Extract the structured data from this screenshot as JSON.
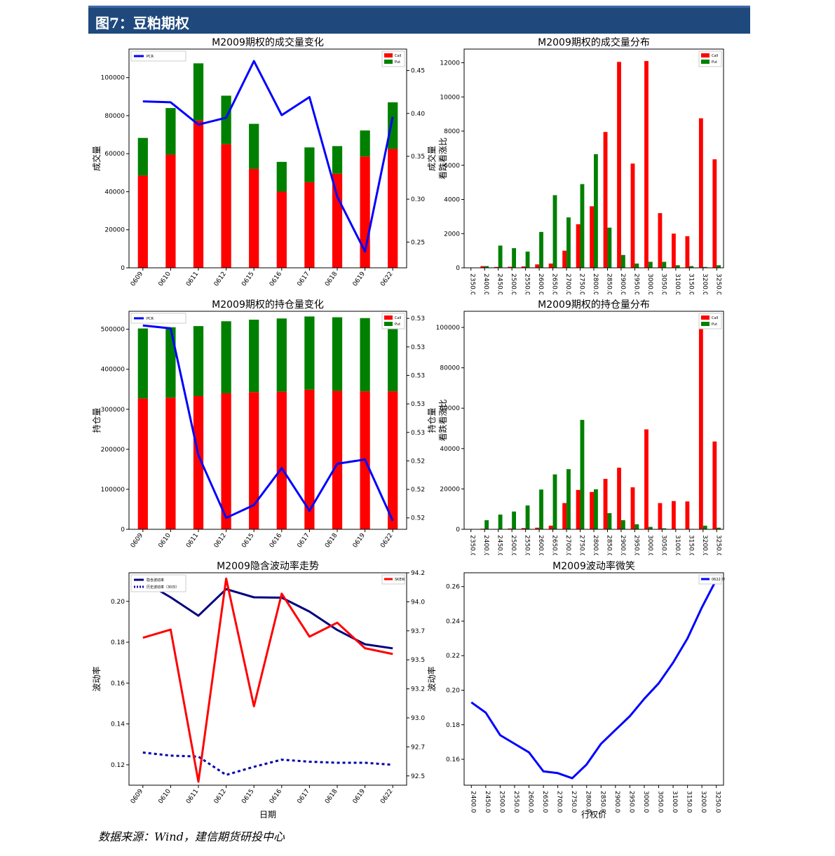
{
  "header": {
    "title": "图7：豆粕期权"
  },
  "source_note": "数据来源：Wind，建信期货研投中心",
  "chart_data": [
    {
      "id": "c1",
      "type": "bar",
      "title": "M2009期权的成交量变化",
      "ylabel": "成交量",
      "y2label": "",
      "categories": [
        "0609",
        "0610",
        "0611",
        "0612",
        "0615",
        "0616",
        "0617",
        "0618",
        "0619",
        "0622"
      ],
      "stacked": true,
      "series": [
        {
          "name": "Call",
          "color": "#ff0000",
          "values": [
            48500,
            59500,
            77500,
            65000,
            52000,
            40000,
            45000,
            49500,
            58500,
            62500
          ]
        },
        {
          "name": "Put",
          "color": "#008000",
          "values": [
            19800,
            24500,
            30000,
            25500,
            23700,
            15700,
            18300,
            14500,
            13700,
            24500
          ]
        }
      ],
      "line": {
        "name": "PCR",
        "color": "#0000ff",
        "values": [
          0.414,
          0.413,
          0.387,
          0.395,
          0.461,
          0.398,
          0.419,
          0.303,
          0.239,
          0.396
        ]
      },
      "ylim": [
        0,
        115000
      ],
      "yticks": [
        0,
        20000,
        40000,
        60000,
        80000,
        100000
      ],
      "y2lim": [
        0.22,
        0.475
      ],
      "y2ticks": [
        0.25,
        0.3,
        0.35,
        0.4,
        0.45
      ],
      "y2ticklabels": [
        "0.25",
        "0.30",
        "0.35",
        "0.40",
        "0.45"
      ],
      "legend_left": [
        "PCR"
      ],
      "legend_right": [
        "Call",
        "Put"
      ]
    },
    {
      "id": "c2",
      "type": "bar",
      "title": "M2009期权的成交量分布",
      "ylabel": "成交量",
      "y2label": "看跌看涨比",
      "categories": [
        "2350.0",
        "2400.0",
        "2450.0",
        "2500.0",
        "2550.0",
        "2600.0",
        "2650.0",
        "2700.0",
        "2750.0",
        "2800.0",
        "2850.0",
        "2900.0",
        "2950.0",
        "3000.0",
        "3050.0",
        "3100.0",
        "3150.0",
        "3200.0",
        "3250.0"
      ],
      "stacked": false,
      "series": [
        {
          "name": "Call",
          "color": "#ff0000",
          "values": [
            0,
            100,
            50,
            60,
            80,
            200,
            250,
            1000,
            2550,
            3600,
            7950,
            12050,
            6100,
            12100,
            3200,
            2000,
            1850,
            8750,
            6350
          ]
        },
        {
          "name": "Put",
          "color": "#008000",
          "values": [
            0,
            100,
            1300,
            1150,
            950,
            2100,
            4250,
            2950,
            4900,
            6650,
            2350,
            750,
            250,
            350,
            350,
            150,
            100,
            50,
            150
          ]
        }
      ],
      "ylim": [
        0,
        12800
      ],
      "yticks": [
        0,
        2000,
        4000,
        6000,
        8000,
        10000,
        12000
      ],
      "legend_right": [
        "Call",
        "Put"
      ]
    },
    {
      "id": "c3",
      "type": "bar",
      "title": "M2009期权的持仓量变化",
      "ylabel": "持仓量",
      "y2label": "看跌看涨比",
      "categories": [
        "0609",
        "0610",
        "0611",
        "0612",
        "0615",
        "0616",
        "0617",
        "0618",
        "0619",
        "0622"
      ],
      "stacked": true,
      "series": [
        {
          "name": "Call",
          "color": "#ff0000",
          "values": [
            327000,
            329000,
            333000,
            340000,
            343000,
            344000,
            349000,
            346000,
            345000,
            345000
          ]
        },
        {
          "name": "Put",
          "color": "#008000",
          "values": [
            175000,
            176000,
            175000,
            180000,
            181000,
            183000,
            183000,
            184000,
            183000,
            185000
          ]
        }
      ],
      "line": {
        "name": "PCR",
        "color": "#0000ff",
        "values": [
          0.5375,
          0.5373,
          0.5284,
          0.524,
          0.5249,
          0.5275,
          0.5245,
          0.5278,
          0.5281,
          0.5238
        ]
      },
      "ylim": [
        0,
        545000
      ],
      "yticks": [
        0,
        100000,
        200000,
        300000,
        400000,
        500000
      ],
      "y2lim": [
        0.5232,
        0.5385
      ],
      "y2ticks": [
        0.524,
        0.526,
        0.528,
        0.53,
        0.532,
        0.534,
        0.536,
        0.538
      ],
      "y2ticklabels": [
        "0.524",
        "0.526",
        "0.528",
        "0.530",
        "0.532",
        "0.534",
        "0.536",
        "0.538"
      ],
      "legend_left": [
        "PCR"
      ],
      "legend_right": [
        "Call",
        "Put"
      ]
    },
    {
      "id": "c4",
      "type": "bar",
      "title": "M2009期权的持仓量分布",
      "ylabel": "持仓量",
      "y2label": "看跌看涨比",
      "categories": [
        "2350.0",
        "2400.0",
        "2450.0",
        "2500.0",
        "2550.0",
        "2600.0",
        "2650.0",
        "2700.0",
        "2750.0",
        "2800.0",
        "2850.0",
        "2900.0",
        "2950.0",
        "3000.0",
        "3050.0",
        "3100.0",
        "3150.0",
        "3200.0",
        "3250.0"
      ],
      "stacked": false,
      "series": [
        {
          "name": "Call",
          "color": "#ff0000",
          "values": [
            0,
            300,
            200,
            400,
            600,
            800,
            1800,
            13000,
            19500,
            18500,
            25000,
            30500,
            20800,
            49500,
            13000,
            14000,
            13800,
            103000,
            43500
          ]
        },
        {
          "name": "Put",
          "color": "#008000",
          "values": [
            0,
            4500,
            7300,
            8800,
            11800,
            19700,
            27200,
            29800,
            54200,
            19800,
            8000,
            4500,
            2500,
            1200,
            500,
            200,
            200,
            1800,
            800
          ]
        }
      ],
      "ylim": [
        0,
        108000
      ],
      "yticks": [
        0,
        20000,
        40000,
        60000,
        80000,
        100000
      ],
      "legend_right": [
        "Call",
        "Put"
      ]
    },
    {
      "id": "c5",
      "type": "line",
      "title": "M2009隐含波动率走势",
      "ylabel": "波动率",
      "y2label": "偏度",
      "xlabel": "日期",
      "categories": [
        "0609",
        "0610",
        "0611",
        "0612",
        "0615",
        "0616",
        "0617",
        "0618",
        "0619",
        "0622"
      ],
      "series": [
        {
          "name": "隐含波动率",
          "color": "#000080",
          "axis": "left",
          "dash": false,
          "values": [
            0.21,
            0.202,
            0.193,
            0.206,
            0.202,
            0.2018,
            0.195,
            0.186,
            0.179,
            0.177
          ]
        },
        {
          "name": "历史波动率（30日）",
          "color": "#0000aa",
          "axis": "left",
          "dash": true,
          "values": [
            0.126,
            0.1245,
            0.124,
            0.115,
            0.119,
            0.1225,
            0.1215,
            0.121,
            0.121,
            0.12
          ]
        },
        {
          "name": "SKEW",
          "color": "#ff0000",
          "axis": "right",
          "dash": false,
          "values": [
            93.69,
            93.76,
            92.45,
            94.2,
            93.1,
            94.07,
            93.7,
            93.82,
            93.6,
            93.55
          ]
        }
      ],
      "ylim": [
        0.11,
        0.214
      ],
      "yticks": [
        0.12,
        0.14,
        0.16,
        0.18,
        0.2
      ],
      "yticklabels": [
        "0.12",
        "0.14",
        "0.16",
        "0.18",
        "0.20"
      ],
      "y2lim": [
        92.42,
        94.25
      ],
      "y2ticks": [
        92.5,
        92.75,
        93.0,
        93.25,
        93.5,
        93.75,
        94.0,
        94.25
      ],
      "y2ticklabels": [
        "92.50",
        "92.75",
        "93.00",
        "93.25",
        "93.50",
        "93.75",
        "94.00",
        "94.25"
      ],
      "legend_left": [
        "隐含波动率",
        "历史波动率（30日）"
      ],
      "legend_right": [
        "SKEW"
      ]
    },
    {
      "id": "c6",
      "type": "line",
      "title": "M2009波动率微笑",
      "ylabel": "波动率",
      "xlabel": "行权价",
      "categories": [
        "2400.0",
        "2450.0",
        "2500.0",
        "2550.0",
        "2600.0",
        "2650.0",
        "2700.0",
        "2750.0",
        "2800.0",
        "2850.0",
        "2900.0",
        "2950.0",
        "3000.0",
        "3050.0",
        "3100.0",
        "3150.0",
        "3200.0",
        "3250.0"
      ],
      "series": [
        {
          "name": "0622 IV",
          "color": "#0000ff",
          "axis": "left",
          "dash": false,
          "values": [
            0.193,
            0.187,
            0.174,
            0.169,
            0.164,
            0.153,
            0.152,
            0.149,
            0.157,
            0.169,
            0.177,
            0.185,
            0.195,
            0.204,
            0.216,
            0.23,
            0.248,
            0.264
          ]
        }
      ],
      "ylim": [
        0.145,
        0.268
      ],
      "yticks": [
        0.16,
        0.18,
        0.2,
        0.22,
        0.24,
        0.26
      ],
      "yticklabels": [
        "0.16",
        "0.18",
        "0.20",
        "0.22",
        "0.24",
        "0.26"
      ],
      "legend_right": [
        "0622 IV"
      ]
    }
  ]
}
